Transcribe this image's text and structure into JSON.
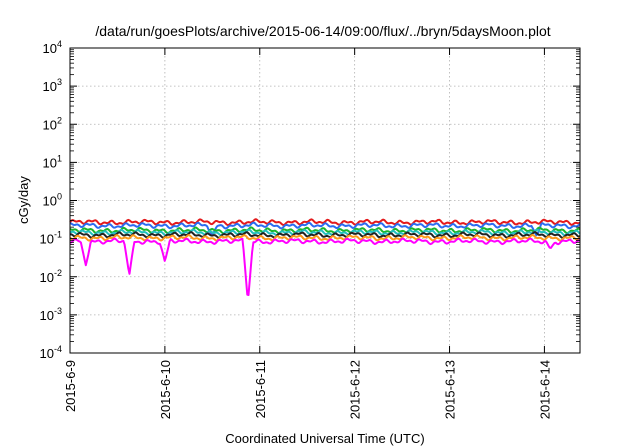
{
  "chart_data": {
    "type": "line",
    "title": "/data/run/goesPlots/archive/2015-06-14/09:00/flux/../bryn/5daysMoon.plot",
    "xlabel": "Coordinated Universal Time (UTC)",
    "ylabel": "cGy/day",
    "yscale": "log",
    "ylim": [
      0.0001,
      10000
    ],
    "y_ticks": [
      {
        "value": 0.0001,
        "mantissa": "10",
        "exponent": "-4"
      },
      {
        "value": 0.001,
        "mantissa": "10",
        "exponent": "-3"
      },
      {
        "value": 0.01,
        "mantissa": "10",
        "exponent": "-2"
      },
      {
        "value": 0.1,
        "mantissa": "10",
        "exponent": "-1"
      },
      {
        "value": 1,
        "mantissa": "10",
        "exponent": "0"
      },
      {
        "value": 10,
        "mantissa": "10",
        "exponent": "1"
      },
      {
        "value": 100,
        "mantissa": "10",
        "exponent": "2"
      },
      {
        "value": 1000,
        "mantissa": "10",
        "exponent": "3"
      },
      {
        "value": 10000,
        "mantissa": "10",
        "exponent": "4"
      }
    ],
    "xlim": [
      "2015-06-09T00:00",
      "2015-06-14T09:00"
    ],
    "x_ticks": [
      "2015-6-9",
      "2015-6-10",
      "2015-6-11",
      "2015-6-12",
      "2015-6-13",
      "2015-6-14"
    ],
    "grid": true,
    "series": [
      {
        "color": "#e41a1c",
        "baseline": 0.27,
        "dips": []
      },
      {
        "color": "#2b6cf0",
        "baseline": 0.22,
        "dips": [
          {
            "time": "2015-06-10T12:00",
            "value": 0.12
          },
          {
            "time": "2015-06-13T22:00",
            "value": 0.12
          }
        ]
      },
      {
        "color": "#1bb52e",
        "baseline": 0.165,
        "dips": []
      },
      {
        "color": "#22bfbf",
        "baseline": 0.145,
        "dips": []
      },
      {
        "color": "#222222",
        "baseline": 0.125,
        "dips": []
      },
      {
        "color": "#ff9a1a",
        "baseline": 0.105,
        "dips": []
      },
      {
        "color": "#ff00ff",
        "baseline": 0.085,
        "dips": [
          {
            "time": "2015-06-09T04:00",
            "value": 0.02
          },
          {
            "time": "2015-06-09T15:00",
            "value": 0.011
          },
          {
            "time": "2015-06-10T00:00",
            "value": 0.025
          },
          {
            "time": "2015-06-10T21:00",
            "value": 0.0022
          },
          {
            "time": "2015-06-14T01:30",
            "value": 0.055
          }
        ]
      }
    ]
  }
}
